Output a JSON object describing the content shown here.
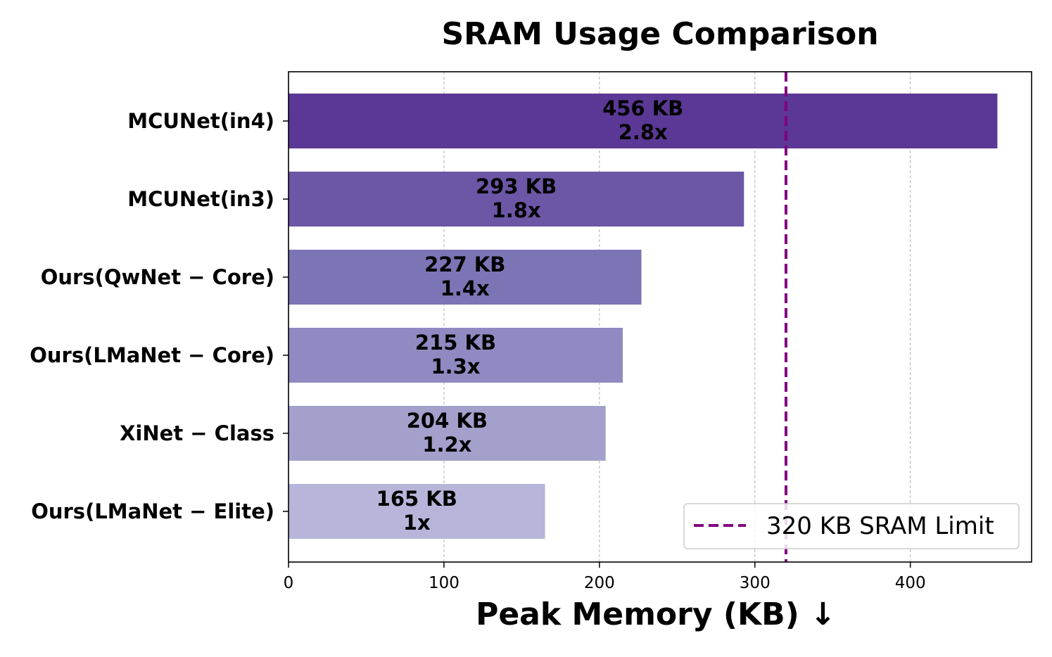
{
  "chart_data": {
    "type": "bar",
    "orientation": "horizontal",
    "title": "SRAM Usage Comparison",
    "xlabel": "Peak Memory (KB) ↓",
    "ylabel": "",
    "xlim": [
      0,
      478
    ],
    "xticks": [
      0,
      100,
      200,
      300,
      400
    ],
    "grid": "x-dashed",
    "categories": [
      "MCUNet(in4)",
      "MCUNet(in3)",
      "Ours(QwNet − Core)",
      "Ours(LMaNet − Core)",
      "XiNet − Class",
      "Ours(LMaNet − Elite)"
    ],
    "values": [
      456,
      293,
      227,
      215,
      204,
      165
    ],
    "value_labels": [
      "456 KB",
      "293 KB",
      "227 KB",
      "215 KB",
      "204 KB",
      "165 KB"
    ],
    "ratio_labels": [
      "2.8x",
      "1.8x",
      "1.4x",
      "1.3x",
      "1.2x",
      "1x"
    ],
    "bar_colors": [
      "#5b3895",
      "#6c56a6",
      "#7b74b5",
      "#8f8ac1",
      "#a3a0cc",
      "#b7b5da"
    ],
    "reference_line": {
      "value": 320,
      "label": "320 KB SRAM Limit",
      "color": "#800080",
      "style": "dashed"
    },
    "legend_position": "lower-right"
  }
}
